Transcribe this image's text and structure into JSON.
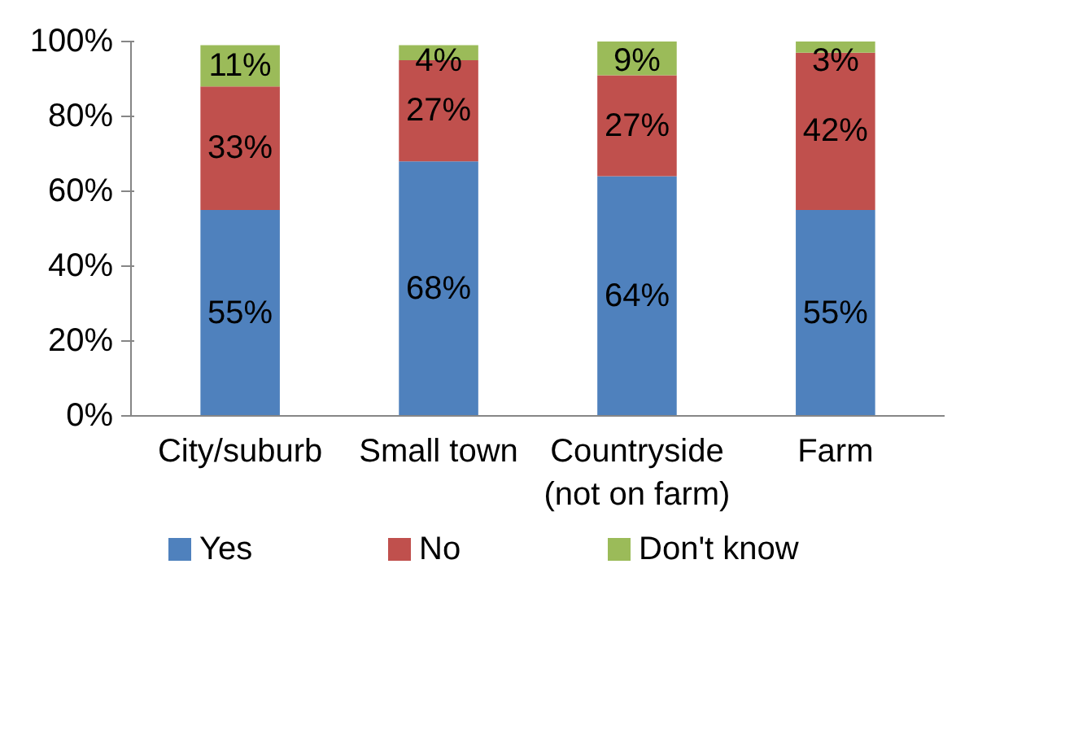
{
  "chart_data": {
    "type": "bar",
    "stacked": true,
    "categories": [
      "City/suburb",
      "Small town",
      "Countryside\n(not on farm)",
      "Farm"
    ],
    "series": [
      {
        "name": "Yes",
        "color": "#4f81bd",
        "values": [
          55,
          68,
          64,
          55
        ],
        "value_labels": [
          "55%",
          "68%",
          "64%",
          "55%"
        ]
      },
      {
        "name": "No",
        "color": "#c0504d",
        "values": [
          33,
          27,
          27,
          42
        ],
        "value_labels": [
          "33%",
          "27%",
          "27%",
          "42%"
        ]
      },
      {
        "name": "Don't know",
        "color": "#9bbb59",
        "values": [
          11,
          4,
          9,
          3
        ],
        "value_labels": [
          "11%",
          "4%",
          "9%",
          "3%"
        ]
      }
    ],
    "ylim": [
      0,
      100
    ],
    "yticks": [
      {
        "value": 0,
        "label": "0%"
      },
      {
        "value": 20,
        "label": "20%"
      },
      {
        "value": 40,
        "label": "40%"
      },
      {
        "value": 60,
        "label": "60%"
      },
      {
        "value": 80,
        "label": "80%"
      },
      {
        "value": 100,
        "label": "100%"
      }
    ],
    "grid": false,
    "legend": "bottom"
  }
}
